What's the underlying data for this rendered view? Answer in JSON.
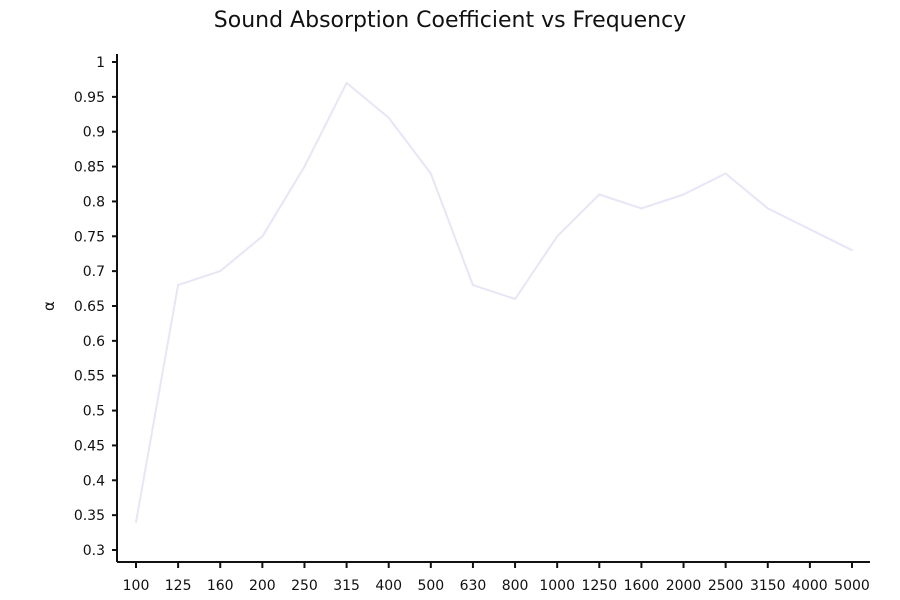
{
  "chart_data": {
    "type": "line",
    "title": "Sound Absorption Coefficient vs Frequency",
    "xlabel": "",
    "ylabel": "α",
    "categories": [
      "100",
      "125",
      "160",
      "200",
      "250",
      "315",
      "400",
      "500",
      "630",
      "800",
      "1000",
      "1250",
      "1600",
      "2000",
      "2500",
      "3150",
      "4000",
      "5000"
    ],
    "series": [
      {
        "values": [
          0.34,
          0.68,
          0.7,
          0.75,
          0.85,
          0.97,
          0.92,
          0.84,
          0.68,
          0.66,
          0.75,
          0.81,
          0.79,
          0.81,
          0.84,
          0.79,
          0.76,
          0.73
        ]
      }
    ],
    "ylim": [
      0.3,
      1.0
    ],
    "yticks": [
      "0.3",
      "0.35",
      "0.4",
      "0.45",
      "0.5",
      "0.55",
      "0.6",
      "0.65",
      "0.7",
      "0.75",
      "0.8",
      "0.85",
      "0.9",
      "0.95",
      "1"
    ],
    "grid": false,
    "legend": "none",
    "line_color": "#e6e6f7"
  }
}
